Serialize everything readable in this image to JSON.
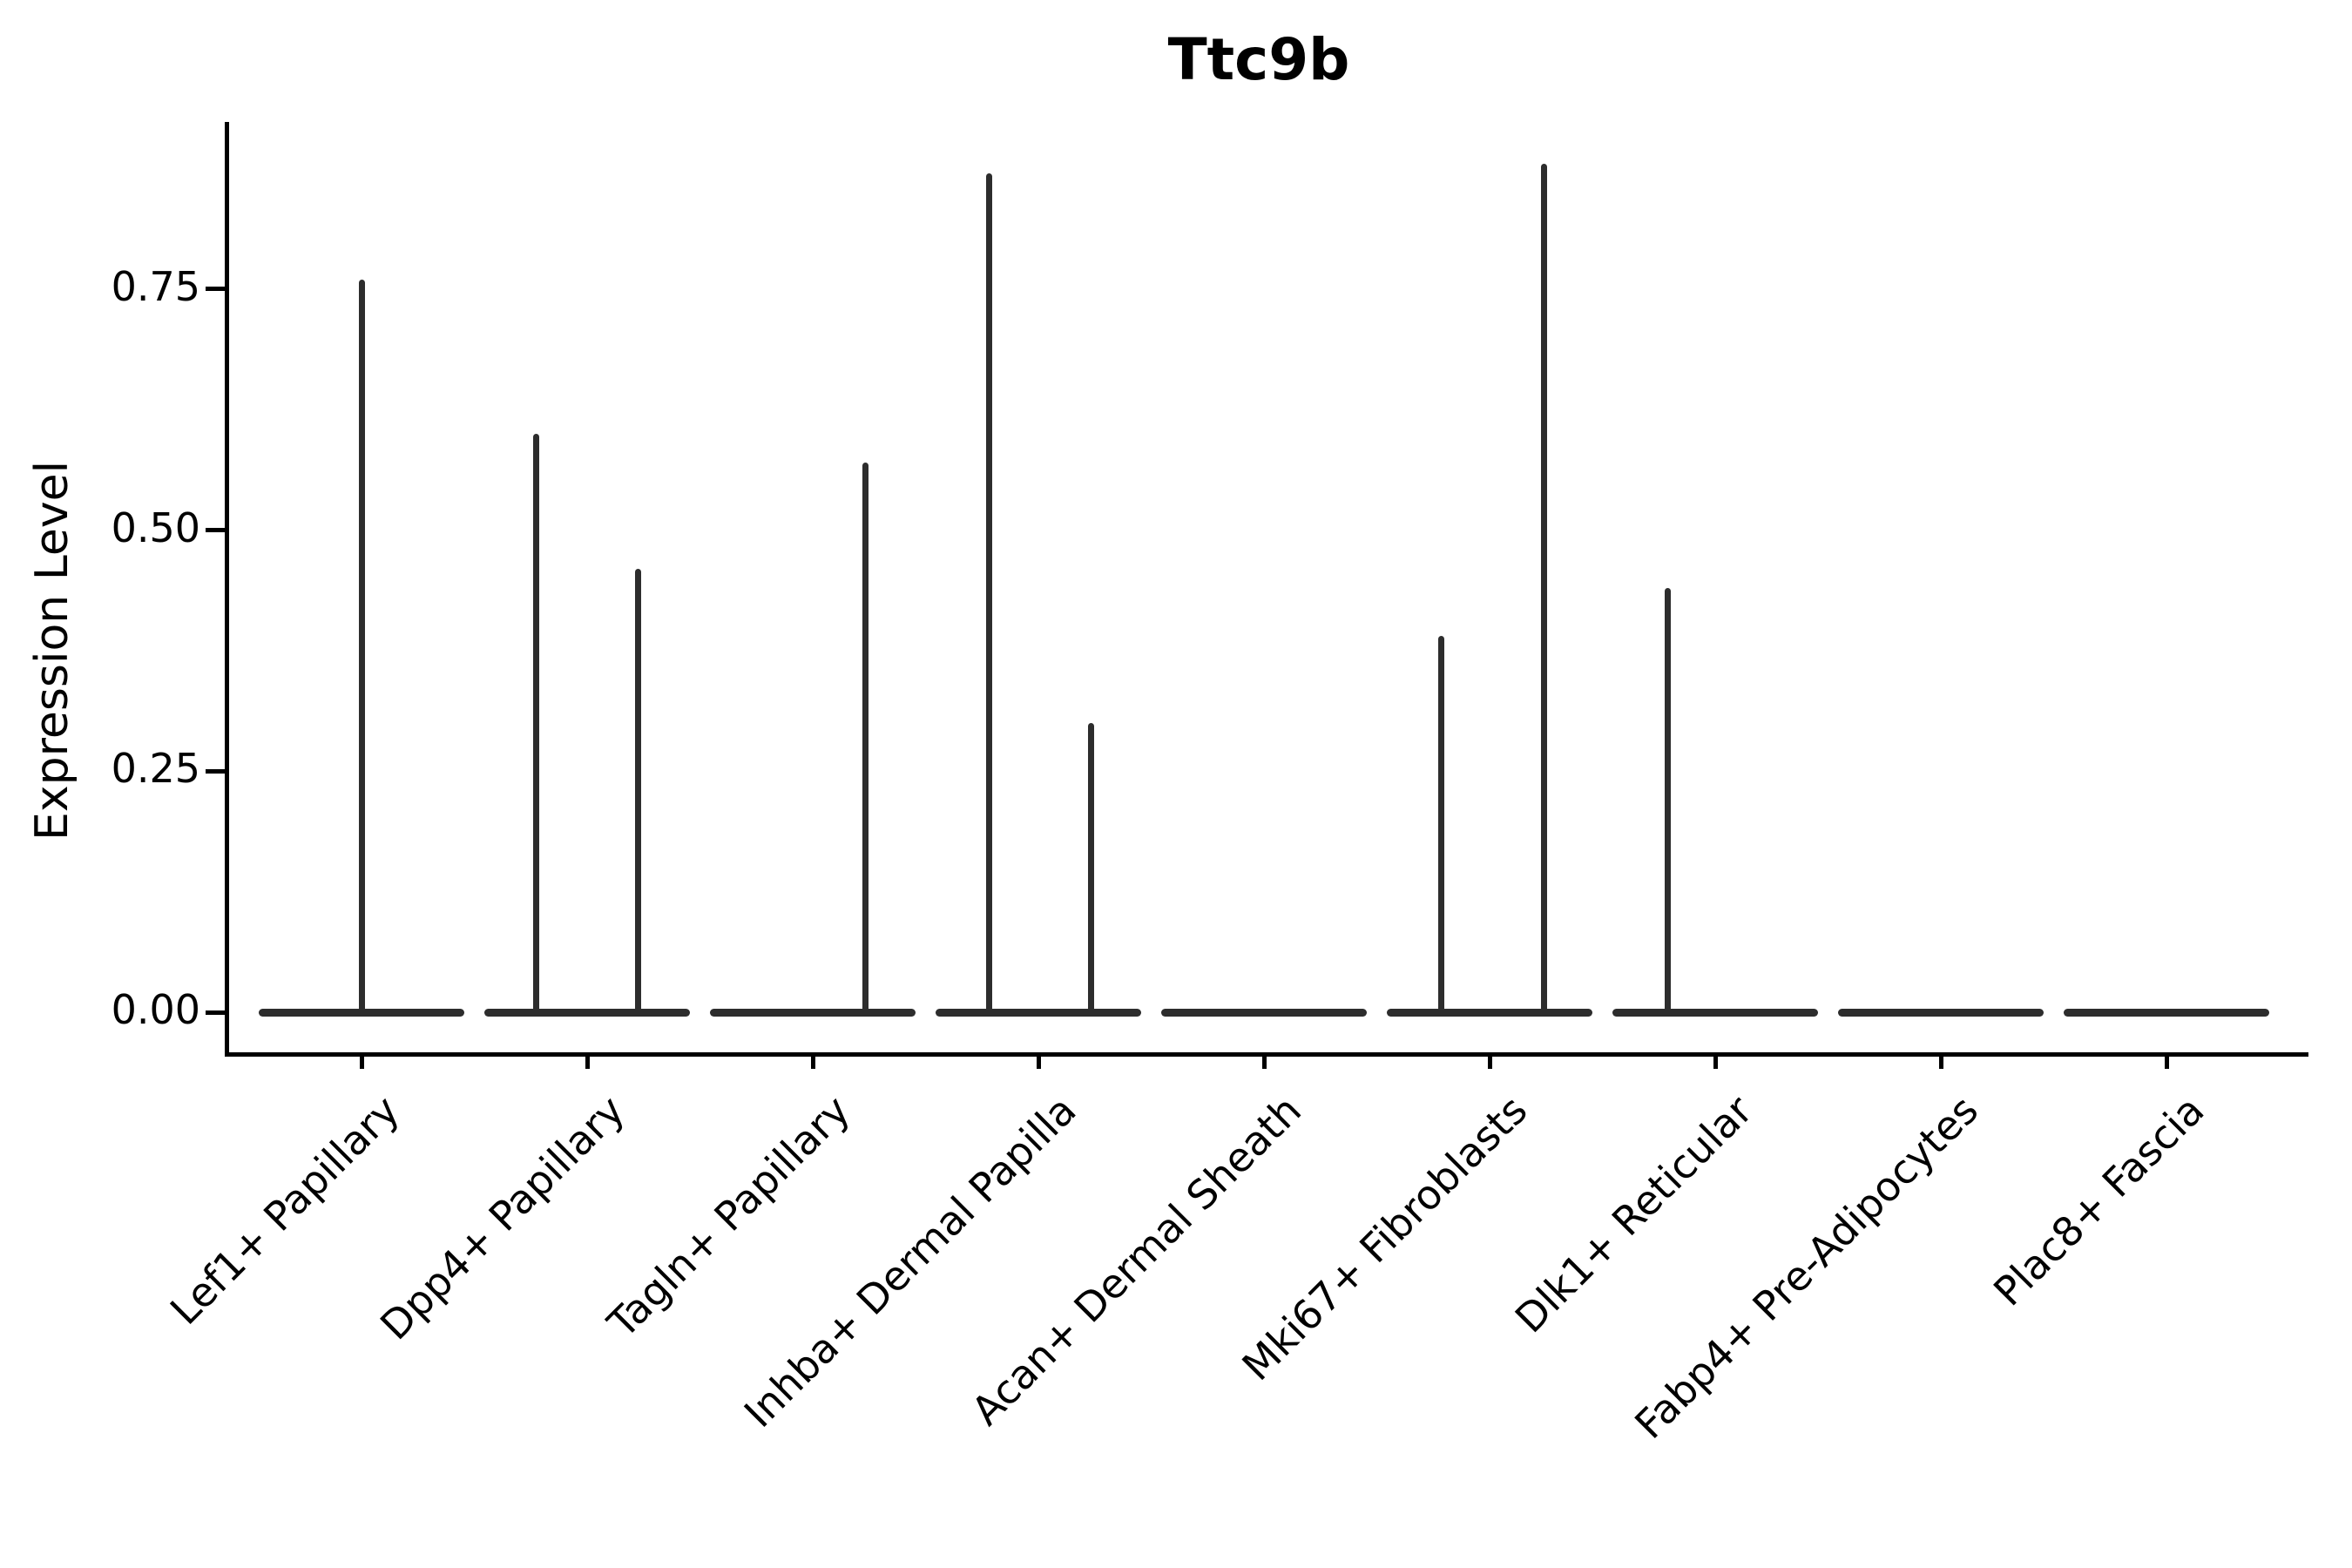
{
  "title": "Ttc9b",
  "y_axis": {
    "label": "Expression Level",
    "tick_labels": [
      "0.00",
      "0.25",
      "0.50",
      "0.75"
    ]
  },
  "chart_data": {
    "type": "violin",
    "title": "Ttc9b",
    "xlabel": "",
    "ylabel": "Expression Level",
    "ylim": [
      0,
      0.93
    ],
    "ytick_values": [
      0,
      0.25,
      0.5,
      0.75
    ],
    "grid": false,
    "legend": "none",
    "categories": [
      "Lef1+ Papillary",
      "Dpp4+ Papillary",
      "Tagln+ Papillary",
      "Inhba+ Dermal Papilla",
      "Acan+ Dermal Sheath",
      "Mki67+ Fibroblasts",
      "Dlk1+ Reticular",
      "Fabp4+ Pre-Adipocytes",
      "Plac8+ Fascia"
    ],
    "violins": [
      {
        "category": "Lef1+ Papillary",
        "baseline_value": 0,
        "spikes": [
          {
            "value": 0.76,
            "dx": 0
          }
        ]
      },
      {
        "category": "Dpp4+ Papillary",
        "baseline_value": 0,
        "spikes": [
          {
            "value": 0.6,
            "dx": -59
          },
          {
            "value": 0.46,
            "dx": 58
          }
        ]
      },
      {
        "category": "Tagln+ Papillary",
        "baseline_value": 0,
        "spikes": [
          {
            "value": 0.57,
            "dx": 60
          }
        ]
      },
      {
        "category": "Inhba+ Dermal Papilla",
        "baseline_value": 0,
        "spikes": [
          {
            "value": 0.87,
            "dx": -57
          },
          {
            "value": 0.3,
            "dx": 60
          }
        ]
      },
      {
        "category": "Acan+ Dermal Sheath",
        "baseline_value": 0,
        "spikes": []
      },
      {
        "category": "Mki67+ Fibroblasts",
        "baseline_value": 0,
        "spikes": [
          {
            "value": 0.39,
            "dx": -56
          },
          {
            "value": 0.88,
            "dx": 62
          }
        ]
      },
      {
        "category": "Dlk1+ Reticular",
        "baseline_value": 0,
        "spikes": [
          {
            "value": 0.44,
            "dx": -55
          }
        ]
      },
      {
        "category": "Fabp4+ Pre-Adipocytes",
        "baseline_value": 0,
        "spikes": []
      },
      {
        "category": "Plac8+ Fascia",
        "baseline_value": 0,
        "spikes": []
      }
    ],
    "colors": {
      "violin_stroke": "#2d2d2d",
      "axis": "#000000",
      "background": "#ffffff"
    }
  }
}
